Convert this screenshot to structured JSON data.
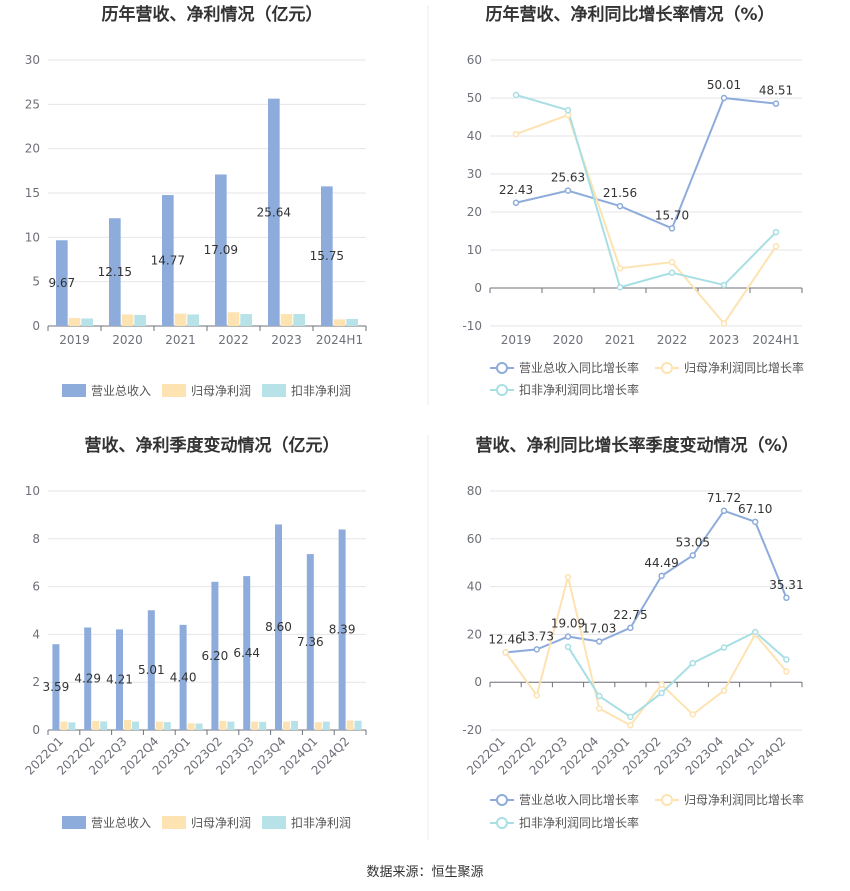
{
  "source_label": "数据来源：恒生聚源",
  "colors": {
    "revenue": "#8eacdb",
    "netprofit": "#fde3b1",
    "deducted": "#b7e3e8",
    "revenue_line": "#8eacdb",
    "netprofit_line": "#fde3b1",
    "deducted_line": "#a8dfe4"
  },
  "chart_data": [
    {
      "type": "bar",
      "title": "历年营收、净利情况（亿元）",
      "categories": [
        "2019",
        "2020",
        "2021",
        "2022",
        "2023",
        "2024H1"
      ],
      "ylim": [
        0,
        30
      ],
      "yticks": [
        0,
        5,
        10,
        15,
        20,
        25,
        30
      ],
      "series": [
        {
          "name": "营业总收入",
          "values": [
            9.67,
            12.15,
            14.77,
            17.09,
            25.64,
            15.75
          ],
          "labels": [
            "9.67",
            "12.15",
            "14.77",
            "17.09",
            "25.64",
            "15.75"
          ]
        },
        {
          "name": "归母净利润",
          "values": [
            0.9,
            1.3,
            1.4,
            1.55,
            1.35,
            0.75
          ]
        },
        {
          "name": "扣非净利润",
          "values": [
            0.85,
            1.25,
            1.3,
            1.35,
            1.35,
            0.8
          ]
        }
      ],
      "legend": "bottom"
    },
    {
      "type": "line",
      "title": "历年营收、净利同比增长率情况（%）",
      "categories": [
        "2019",
        "2020",
        "2021",
        "2022",
        "2023",
        "2024H1"
      ],
      "ylim": [
        -10,
        60
      ],
      "yticks": [
        -10,
        0,
        10,
        20,
        30,
        40,
        50,
        60
      ],
      "series": [
        {
          "name": "营业总收入同比增长率",
          "values": [
            22.43,
            25.63,
            21.56,
            15.7,
            50.01,
            48.51
          ],
          "labels": [
            "22.43",
            "25.63",
            "21.56",
            "15.70",
            "50.01",
            "48.51"
          ]
        },
        {
          "name": "归母净利润同比增长率",
          "values": [
            40.5,
            45.5,
            5.2,
            6.8,
            -9.3,
            11.0
          ]
        },
        {
          "name": "扣非净利润同比增长率",
          "values": [
            50.8,
            46.8,
            0.2,
            4.0,
            0.8,
            14.7
          ]
        }
      ],
      "legend": "bottom"
    },
    {
      "type": "bar",
      "title": "营收、净利季度变动情况（亿元）",
      "categories": [
        "2022Q1",
        "2022Q2",
        "2022Q3",
        "2022Q4",
        "2023Q1",
        "2023Q2",
        "2023Q3",
        "2023Q4",
        "2024Q1",
        "2024Q2"
      ],
      "ylim": [
        0,
        10
      ],
      "yticks": [
        0,
        2,
        4,
        6,
        8,
        10
      ],
      "series": [
        {
          "name": "营业总收入",
          "values": [
            3.59,
            4.29,
            4.21,
            5.01,
            4.4,
            6.2,
            6.44,
            8.6,
            7.36,
            8.39
          ],
          "labels": [
            "3.59",
            "4.29",
            "4.21",
            "5.01",
            "4.40",
            "6.20",
            "6.44",
            "8.60",
            "7.36",
            "8.39"
          ]
        },
        {
          "name": "归母净利润",
          "values": [
            0.35,
            0.38,
            0.42,
            0.35,
            0.28,
            0.38,
            0.35,
            0.35,
            0.33,
            0.4
          ]
        },
        {
          "name": "扣非净利润",
          "values": [
            0.32,
            0.36,
            0.35,
            0.33,
            0.27,
            0.35,
            0.34,
            0.38,
            0.35,
            0.39
          ]
        }
      ],
      "legend": "bottom"
    },
    {
      "type": "line",
      "title": "营收、净利同比增长率季度变动情况（%）",
      "categories": [
        "2022Q1",
        "2022Q2",
        "2022Q3",
        "2022Q4",
        "2023Q1",
        "2023Q2",
        "2023Q3",
        "2023Q4",
        "2024Q1",
        "2024Q2"
      ],
      "ylim": [
        -20,
        80
      ],
      "yticks": [
        -20,
        0,
        20,
        40,
        60,
        80
      ],
      "series": [
        {
          "name": "营业总收入同比增长率",
          "values": [
            12.46,
            13.73,
            19.09,
            17.03,
            22.75,
            44.49,
            53.05,
            71.72,
            67.1,
            35.31
          ],
          "labels": [
            "12.46",
            "13.73",
            "19.09",
            "17.03",
            "22.75",
            "44.49",
            "53.05",
            "71.72",
            "67.10",
            "35.31"
          ]
        },
        {
          "name": "归母净利润同比增长率",
          "values": [
            12.5,
            -5.5,
            44.0,
            -11.0,
            -18.0,
            -1.0,
            -13.5,
            -3.5,
            20.0,
            4.5
          ]
        },
        {
          "name": "扣非净利润同比增长率",
          "values": [
            null,
            null,
            14.8,
            -5.8,
            -14.5,
            -4.5,
            8.0,
            14.5,
            21.0,
            9.5
          ]
        }
      ],
      "legend": "bottom"
    }
  ]
}
